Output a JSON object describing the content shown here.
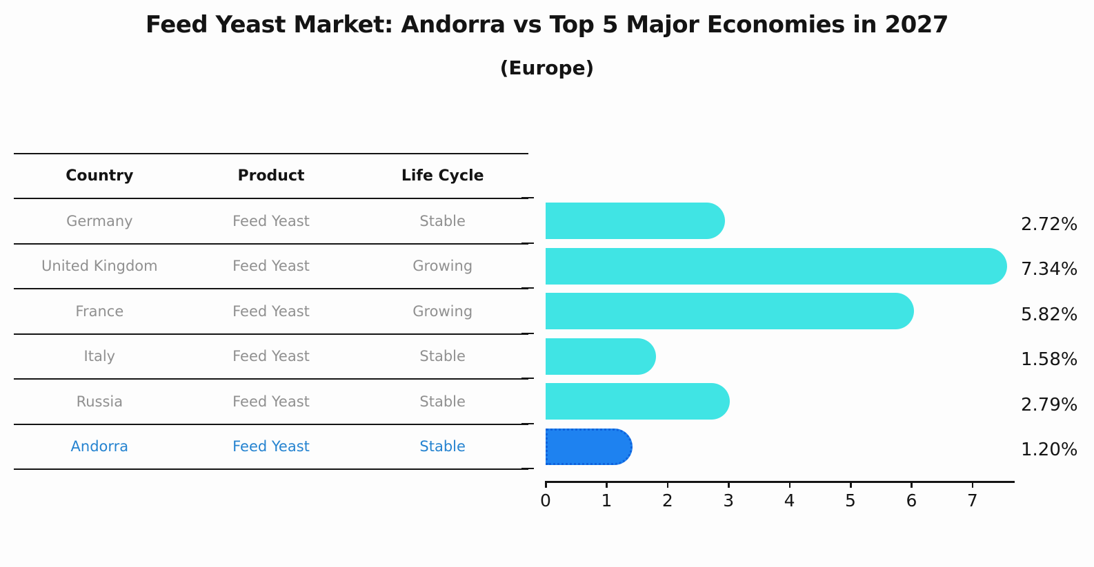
{
  "title": "Feed Yeast Market: Andorra vs Top 5 Major Economies in 2027",
  "subtitle": "(Europe)",
  "table": {
    "headers": [
      "Country",
      "Product",
      "Life Cycle"
    ],
    "rows": [
      {
        "country": "Germany",
        "product": "Feed Yeast",
        "life_cycle": "Stable",
        "highlight": false
      },
      {
        "country": "United Kingdom",
        "product": "Feed Yeast",
        "life_cycle": "Growing",
        "highlight": false
      },
      {
        "country": "France",
        "product": "Feed Yeast",
        "life_cycle": "Growing",
        "highlight": false
      },
      {
        "country": "Italy",
        "product": "Feed Yeast",
        "life_cycle": "Stable",
        "highlight": false
      },
      {
        "country": "Russia",
        "product": "Feed Yeast",
        "life_cycle": "Stable",
        "highlight": false
      },
      {
        "country": "Andorra",
        "product": "Feed Yeast",
        "life_cycle": "Stable",
        "highlight": true
      }
    ]
  },
  "chart_data": {
    "type": "bar",
    "orientation": "horizontal",
    "title": "Feed Yeast Market: Andorra vs Top 5 Major Economies in 2027",
    "subtitle": "(Europe)",
    "categories": [
      "Germany",
      "United Kingdom",
      "France",
      "Italy",
      "Russia",
      "Andorra"
    ],
    "values": [
      2.72,
      7.34,
      5.82,
      1.58,
      2.79,
      1.2
    ],
    "value_labels": [
      "2.72%",
      "7.34%",
      "5.82%",
      "1.58%",
      "2.79%",
      "1.20%"
    ],
    "highlight_index": 5,
    "x_ticks": [
      "0",
      "1",
      "2",
      "3",
      "4",
      "5",
      "6",
      "7"
    ],
    "xlim": [
      0,
      7.7
    ],
    "grid": false,
    "legend": "none",
    "bar_color": "#40e4e4",
    "highlight_bar_color": "#1e82f0",
    "highlight_border_color": "#0f62dc"
  },
  "colors": {
    "background": "#fdfdfd",
    "header_text": "#141414",
    "row_text": "#909090",
    "highlight_text": "#2583d0",
    "axis_line": "#141414",
    "value_text": "#141414"
  }
}
